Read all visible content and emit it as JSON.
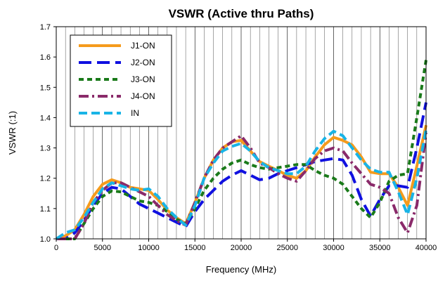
{
  "chart_data": {
    "type": "line",
    "title": "VSWR (Active thru Paths)",
    "xlabel": "Frequency (MHz)",
    "ylabel": "VSWR (:1)",
    "xlim": [
      0,
      40000
    ],
    "ylim": [
      1.0,
      1.7
    ],
    "xticks": [
      0,
      5000,
      10000,
      15000,
      20000,
      25000,
      30000,
      35000,
      40000
    ],
    "xtick_labels": [
      "0",
      "5000",
      "10000",
      "15000",
      "20000",
      "25000",
      "30000",
      "35000",
      "40000"
    ],
    "yticks": [
      1.0,
      1.1,
      1.2,
      1.3,
      1.4,
      1.5,
      1.6,
      1.7
    ],
    "ytick_labels": [
      "1.0",
      "1.1",
      "1.2",
      "1.3",
      "1.4",
      "1.5",
      "1.6",
      "1.7"
    ],
    "grid": "vertical",
    "legend_position": "top-left",
    "series": [
      {
        "name": "J1-ON",
        "color": "#f59b1c",
        "dash": "solid",
        "x": [
          0,
          1000,
          2000,
          3000,
          4000,
          5000,
          6000,
          7000,
          8000,
          9000,
          10000,
          11000,
          12000,
          13000,
          14000,
          15000,
          16000,
          17000,
          18000,
          19000,
          20000,
          21000,
          22000,
          23000,
          24000,
          25000,
          26000,
          27000,
          28000,
          29000,
          30000,
          31000,
          32000,
          33000,
          34000,
          35000,
          36000,
          37000,
          38000,
          39000,
          40000
        ],
        "y": [
          1.0,
          1.01,
          1.03,
          1.08,
          1.14,
          1.18,
          1.195,
          1.185,
          1.17,
          1.165,
          1.16,
          1.13,
          1.095,
          1.07,
          1.05,
          1.12,
          1.2,
          1.26,
          1.3,
          1.32,
          1.325,
          1.29,
          1.255,
          1.24,
          1.225,
          1.21,
          1.2,
          1.225,
          1.27,
          1.31,
          1.335,
          1.325,
          1.31,
          1.27,
          1.22,
          1.215,
          1.215,
          1.17,
          1.11,
          1.24,
          1.375
        ]
      },
      {
        "name": "J2-ON",
        "color": "#1010e0",
        "dash": "longdash",
        "x": [
          0,
          1000,
          2000,
          3000,
          4000,
          5000,
          6000,
          7000,
          8000,
          9000,
          10000,
          11000,
          12000,
          13000,
          14000,
          15000,
          16000,
          17000,
          18000,
          19000,
          20000,
          21000,
          22000,
          23000,
          24000,
          25000,
          26000,
          27000,
          28000,
          29000,
          30000,
          31000,
          32000,
          33000,
          34000,
          35000,
          36000,
          37000,
          38000,
          39000,
          40000
        ],
        "y": [
          1.0,
          1.0,
          1.02,
          1.06,
          1.11,
          1.15,
          1.17,
          1.165,
          1.14,
          1.115,
          1.1,
          1.085,
          1.07,
          1.055,
          1.04,
          1.09,
          1.13,
          1.16,
          1.19,
          1.21,
          1.225,
          1.21,
          1.195,
          1.2,
          1.215,
          1.225,
          1.235,
          1.245,
          1.255,
          1.26,
          1.265,
          1.26,
          1.21,
          1.13,
          1.075,
          1.13,
          1.175,
          1.175,
          1.17,
          1.3,
          1.45
        ]
      },
      {
        "name": "J3-ON",
        "color": "#1a7a1a",
        "dash": "dashed",
        "x": [
          0,
          1000,
          2000,
          3000,
          4000,
          5000,
          6000,
          7000,
          8000,
          9000,
          10000,
          11000,
          12000,
          13000,
          14000,
          15000,
          16000,
          17000,
          18000,
          19000,
          20000,
          21000,
          22000,
          23000,
          24000,
          25000,
          26000,
          27000,
          28000,
          29000,
          30000,
          31000,
          32000,
          33000,
          34000,
          35000,
          36000,
          37000,
          38000,
          39000,
          40000
        ],
        "y": [
          1.0,
          1.0,
          1.0,
          1.05,
          1.1,
          1.14,
          1.158,
          1.155,
          1.14,
          1.125,
          1.12,
          1.11,
          1.09,
          1.065,
          1.05,
          1.1,
          1.16,
          1.2,
          1.23,
          1.25,
          1.26,
          1.245,
          1.235,
          1.23,
          1.235,
          1.24,
          1.245,
          1.245,
          1.225,
          1.21,
          1.2,
          1.18,
          1.14,
          1.1,
          1.07,
          1.12,
          1.19,
          1.21,
          1.215,
          1.4,
          1.59
        ]
      },
      {
        "name": "J4-ON",
        "color": "#8a2a6a",
        "dash": "dashdot",
        "x": [
          0,
          1000,
          2000,
          3000,
          4000,
          5000,
          6000,
          7000,
          8000,
          9000,
          10000,
          11000,
          12000,
          13000,
          14000,
          15000,
          16000,
          17000,
          18000,
          19000,
          20000,
          21000,
          22000,
          23000,
          24000,
          25000,
          26000,
          27000,
          28000,
          29000,
          30000,
          31000,
          32000,
          33000,
          34000,
          35000,
          36000,
          37000,
          38000,
          39000,
          40000
        ],
        "y": [
          1.0,
          1.0,
          1.0,
          1.05,
          1.12,
          1.16,
          1.185,
          1.185,
          1.17,
          1.155,
          1.14,
          1.11,
          1.08,
          1.06,
          1.045,
          1.12,
          1.2,
          1.26,
          1.3,
          1.32,
          1.34,
          1.3,
          1.25,
          1.235,
          1.215,
          1.2,
          1.19,
          1.225,
          1.265,
          1.29,
          1.3,
          1.29,
          1.25,
          1.215,
          1.18,
          1.17,
          1.15,
          1.07,
          1.02,
          1.11,
          1.35
        ]
      },
      {
        "name": "IN",
        "color": "#19b4e6",
        "dash": "dashed-long",
        "x": [
          0,
          1000,
          2000,
          3000,
          4000,
          5000,
          6000,
          7000,
          8000,
          9000,
          10000,
          11000,
          12000,
          13000,
          14000,
          15000,
          16000,
          17000,
          18000,
          19000,
          20000,
          21000,
          22000,
          23000,
          24000,
          25000,
          26000,
          27000,
          28000,
          29000,
          30000,
          31000,
          32000,
          33000,
          34000,
          35000,
          36000,
          37000,
          38000,
          39000,
          40000
        ],
        "y": [
          1.0,
          1.02,
          1.03,
          1.07,
          1.12,
          1.165,
          1.185,
          1.175,
          1.165,
          1.16,
          1.165,
          1.14,
          1.1,
          1.07,
          1.045,
          1.11,
          1.2,
          1.25,
          1.29,
          1.305,
          1.315,
          1.29,
          1.255,
          1.235,
          1.225,
          1.215,
          1.215,
          1.24,
          1.29,
          1.33,
          1.355,
          1.34,
          1.3,
          1.26,
          1.23,
          1.22,
          1.22,
          1.155,
          1.08,
          1.2,
          1.36
        ]
      }
    ]
  }
}
